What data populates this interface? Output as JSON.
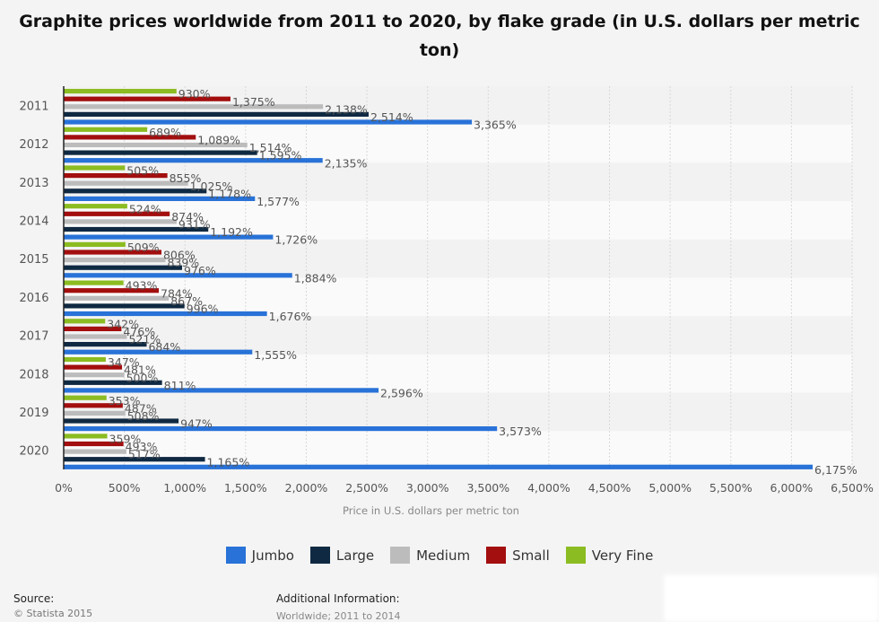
{
  "title": "Graphite prices worldwide from 2011 to 2020, by flake grade (in U.S. dollars per metric ton)",
  "footer": {
    "source_label": "Source:",
    "source_value": "© Statista 2015",
    "additional_label": "Additional Information:",
    "additional_value": "Worldwide; 2011 to 2014"
  },
  "chart_data": {
    "type": "bar",
    "orientation": "horizontal",
    "title": "Graphite prices worldwide from 2011 to 2020, by flake grade (in U.S. dollars per metric ton)",
    "xlabel": "Price in U.S. dollars per metric ton",
    "ylabel": "",
    "xlim": [
      0,
      6500
    ],
    "x_ticks": [
      0,
      500,
      1000,
      1500,
      2000,
      2500,
      3000,
      3500,
      4000,
      4500,
      5000,
      5500,
      6000,
      6500
    ],
    "x_tick_labels": [
      "0%",
      "500%",
      "1,000%",
      "1,500%",
      "2,000%",
      "2,500%",
      "3,000%",
      "3,500%",
      "4,000%",
      "4,500%",
      "5,000%",
      "5,500%",
      "6,000%",
      "6,500%"
    ],
    "grid": true,
    "legend_position": "bottom",
    "categories": [
      "2011",
      "2012",
      "2013",
      "2014",
      "2015",
      "2016",
      "2017",
      "2018",
      "2019",
      "2020"
    ],
    "series": [
      {
        "name": "Very Fine",
        "color": "#8bbc21",
        "values": [
          930,
          689,
          505,
          524,
          509,
          493,
          342,
          347,
          353,
          359
        ]
      },
      {
        "name": "Small",
        "color": "#a30e0e",
        "values": [
          1375,
          1089,
          855,
          874,
          806,
          784,
          476,
          481,
          487,
          493
        ]
      },
      {
        "name": "Medium",
        "color": "#bcbcbc",
        "values": [
          2138,
          1514,
          1025,
          931,
          839,
          867,
          521,
          500,
          508,
          517
        ]
      },
      {
        "name": "Large",
        "color": "#0f2942",
        "values": [
          2514,
          1595,
          1178,
          1192,
          976,
          996,
          684,
          811,
          947,
          1165
        ]
      },
      {
        "name": "Jumbo",
        "color": "#2872d8",
        "values": [
          3365,
          2135,
          1577,
          1726,
          1884,
          1676,
          1555,
          2596,
          3573,
          6175
        ]
      }
    ],
    "legend_order": [
      "Jumbo",
      "Large",
      "Medium",
      "Small",
      "Very Fine"
    ],
    "value_suffix": "%"
  }
}
